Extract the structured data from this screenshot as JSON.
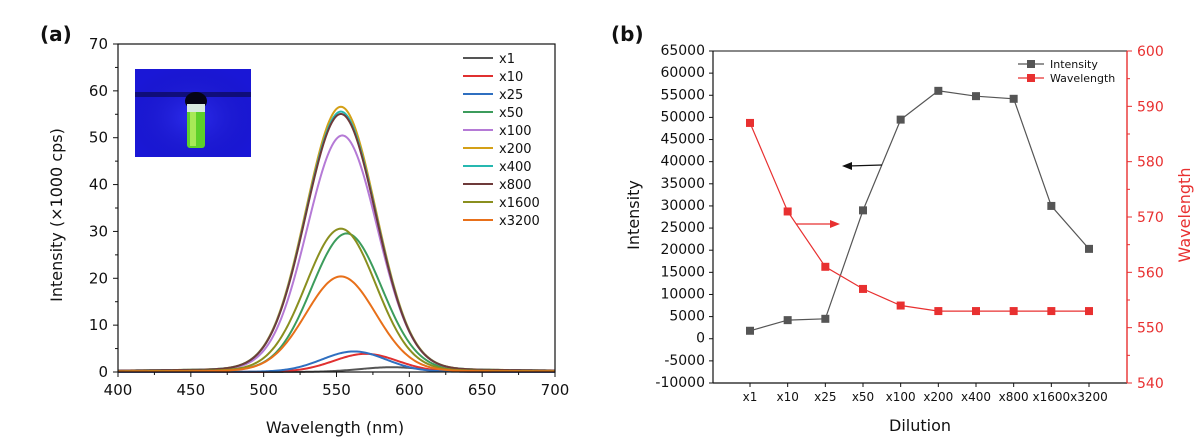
{
  "chart_data": [
    {
      "panel": "(a)",
      "type": "line",
      "xlabel": "Wavelength (nm)",
      "ylabel": "Intensity (×1000 cps)",
      "xlim": [
        400,
        700
      ],
      "ylim": [
        0,
        70
      ],
      "x_ticks": [
        "400",
        "450",
        "500",
        "550",
        "600",
        "650",
        "700"
      ],
      "y_ticks": [
        "0",
        "10",
        "20",
        "30",
        "40",
        "50",
        "60",
        "70"
      ],
      "legend_position": "top-right",
      "inset": "photo of vial with green fluorescence under UV light",
      "series": [
        {
          "name": "x1",
          "color": "#555555",
          "peak_wavelength": 588,
          "peak_intensity": 1.0,
          "width": 22
        },
        {
          "name": "x10",
          "color": "#e03030",
          "peak_wavelength": 570,
          "peak_intensity": 3.8,
          "width": 22
        },
        {
          "name": "x25",
          "color": "#2f6fc0",
          "peak_wavelength": 562,
          "peak_intensity": 4.3,
          "width": 22
        },
        {
          "name": "x50",
          "color": "#3c9c5c",
          "peak_wavelength": 557,
          "peak_intensity": 29.0,
          "width": 24
        },
        {
          "name": "x100",
          "color": "#b57ad6",
          "peak_wavelength": 554,
          "peak_intensity": 49.5,
          "width": 24
        },
        {
          "name": "x200",
          "color": "#d4a017",
          "peak_wavelength": 553,
          "peak_intensity": 55.5,
          "width": 24
        },
        {
          "name": "x400",
          "color": "#26b8b0",
          "peak_wavelength": 553,
          "peak_intensity": 54.5,
          "width": 24
        },
        {
          "name": "x800",
          "color": "#6e3a3a",
          "peak_wavelength": 553,
          "peak_intensity": 54.0,
          "width": 24
        },
        {
          "name": "x1600",
          "color": "#8a8f1f",
          "peak_wavelength": 553,
          "peak_intensity": 30.0,
          "width": 24
        },
        {
          "name": "x3200",
          "color": "#e8701a",
          "peak_wavelength": 553,
          "peak_intensity": 20.0,
          "width": 24
        }
      ]
    },
    {
      "panel": "(b)",
      "type": "line",
      "xlabel": "Dilution",
      "ylabel": "Intensity",
      "y2label": "Wavelength",
      "categories": [
        "x1",
        "x10",
        "x25",
        "x50",
        "x100",
        "x200",
        "x400",
        "x800",
        "x1600",
        "x3200"
      ],
      "ylim": [
        -10000,
        65000
      ],
      "y2lim": [
        540,
        600
      ],
      "y_ticks": [
        "-10000",
        "-5000",
        "0",
        "5000",
        "10000",
        "15000",
        "20000",
        "25000",
        "30000",
        "35000",
        "40000",
        "45000",
        "50000",
        "55000",
        "60000",
        "65000"
      ],
      "y2_ticks": [
        "540",
        "550",
        "560",
        "570",
        "580",
        "590",
        "600"
      ],
      "legend_position": "top-right",
      "series": [
        {
          "name": "Intensity",
          "axis": "left",
          "color": "#555555",
          "values": [
            1800,
            4200,
            4500,
            29000,
            49500,
            56000,
            54800,
            54200,
            30000,
            20300
          ]
        },
        {
          "name": "Wavelength",
          "axis": "right",
          "color": "#e83030",
          "values": [
            587,
            571,
            561,
            557,
            554,
            553,
            553,
            553,
            553,
            553
          ]
        }
      ],
      "annotations": [
        {
          "type": "arrow",
          "points_to": "left",
          "series": "Intensity"
        },
        {
          "type": "arrow",
          "points_to": "right",
          "series": "Wavelength"
        }
      ]
    }
  ]
}
